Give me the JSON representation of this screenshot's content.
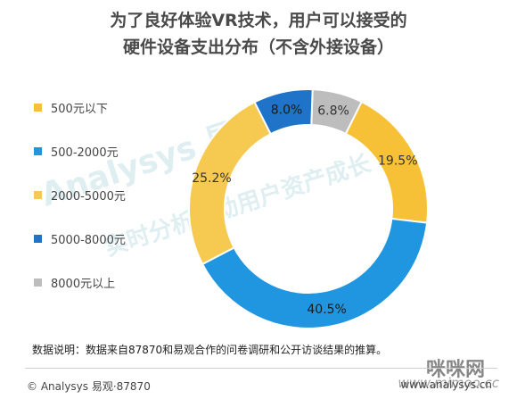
{
  "title_line1": "为了良好体验VR技术，用户可以接受的",
  "title_line2": "硬件设备支出分布（不含外接设备）",
  "chart_data": {
    "type": "pie",
    "donut": true,
    "title": "为了良好体验VR技术，用户可以接受的硬件设备支出分布（不含外接设备）",
    "legend_position": "left",
    "categories": [
      "500元以下",
      "500-2000元",
      "2000-5000元",
      "5000-8000元",
      "8000元以上"
    ],
    "values": [
      19.5,
      40.5,
      25.2,
      8.0,
      6.8
    ],
    "value_labels": [
      "19.5%",
      "40.5%",
      "25.2%",
      "8.0%",
      "6.8%"
    ],
    "colors": [
      "#f6c136",
      "#2196e0",
      "#f6c950",
      "#1f73c8",
      "#bdbdbd"
    ]
  },
  "watermark": {
    "brand": "Analysys 易观",
    "slogan": "实时分析驱动用户资产成长"
  },
  "footnote": "数据说明：数据来自87870和易观合作的问卷调研和公开访谈结果的推算。",
  "footer_left": "© Analysys 易观·87870",
  "footer_right": "www.analysys.cn",
  "site_mark": "咪咪网",
  "site_url": "www.mimoo.cc"
}
